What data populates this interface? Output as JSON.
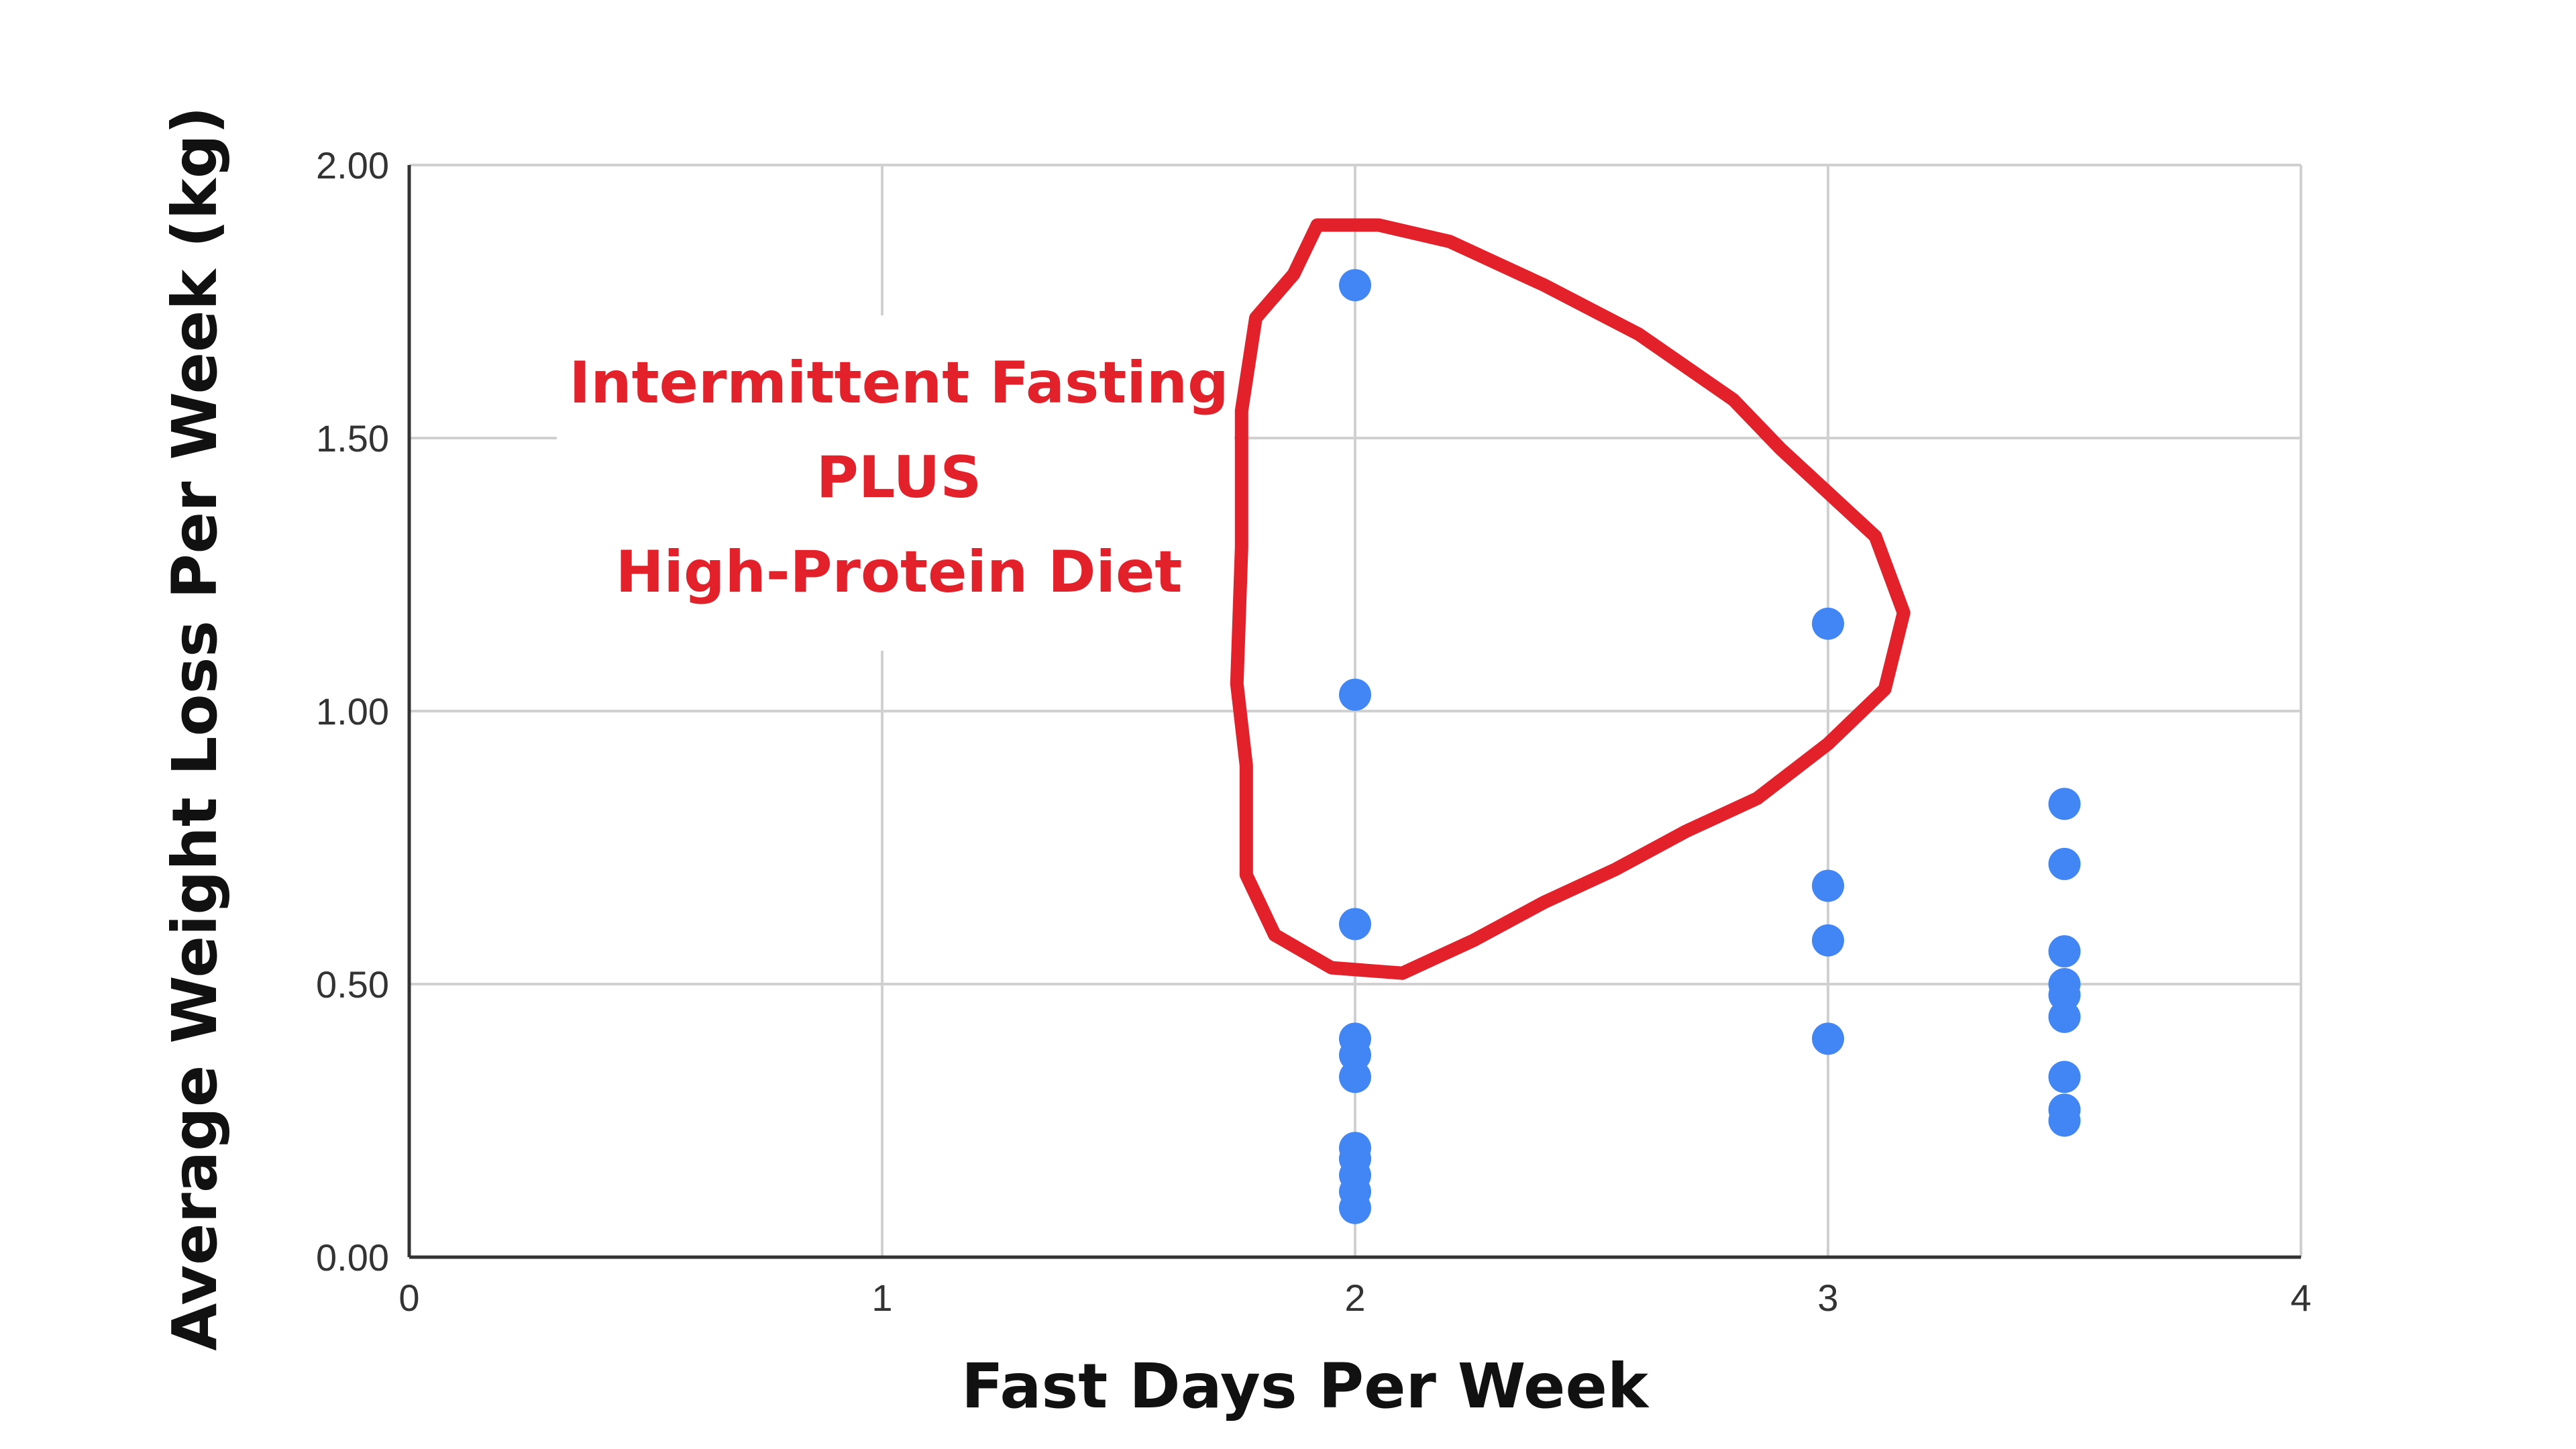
{
  "chart_data": {
    "type": "scatter",
    "xlabel": "Fast Days Per Week",
    "ylabel": "Average Weight Loss Per Week (kg)",
    "xlim": [
      0,
      4
    ],
    "ylim": [
      0,
      2
    ],
    "x_ticks": [
      "0",
      "1",
      "2",
      "3",
      "4"
    ],
    "y_ticks": [
      "0.00",
      "0.50",
      "1.00",
      "1.50",
      "2.00"
    ],
    "grid": true,
    "point_color": "#4285f4",
    "points": [
      {
        "x": 2,
        "y": 1.78
      },
      {
        "x": 2,
        "y": 1.03
      },
      {
        "x": 2,
        "y": 0.61
      },
      {
        "x": 2,
        "y": 0.4
      },
      {
        "x": 2,
        "y": 0.37
      },
      {
        "x": 2,
        "y": 0.33
      },
      {
        "x": 2,
        "y": 0.2
      },
      {
        "x": 2,
        "y": 0.18
      },
      {
        "x": 2,
        "y": 0.15
      },
      {
        "x": 2,
        "y": 0.12
      },
      {
        "x": 2,
        "y": 0.09
      },
      {
        "x": 3,
        "y": 1.16
      },
      {
        "x": 3,
        "y": 0.68
      },
      {
        "x": 3,
        "y": 0.58
      },
      {
        "x": 3,
        "y": 0.4
      },
      {
        "x": 3.5,
        "y": 0.83
      },
      {
        "x": 3.5,
        "y": 0.72
      },
      {
        "x": 3.5,
        "y": 0.56
      },
      {
        "x": 3.5,
        "y": 0.5
      },
      {
        "x": 3.5,
        "y": 0.48
      },
      {
        "x": 3.5,
        "y": 0.44
      },
      {
        "x": 3.5,
        "y": 0.33
      },
      {
        "x": 3.5,
        "y": 0.27
      },
      {
        "x": 3.5,
        "y": 0.25
      }
    ],
    "annotation": {
      "lines": [
        "Intermittent Fasting",
        "PLUS",
        "High-Protein Diet"
      ],
      "color": "#e3212b",
      "highlight": "red hand-drawn loop around points at x=2 (y 0.61–1.78) and x=3 (y 1.16)"
    }
  }
}
